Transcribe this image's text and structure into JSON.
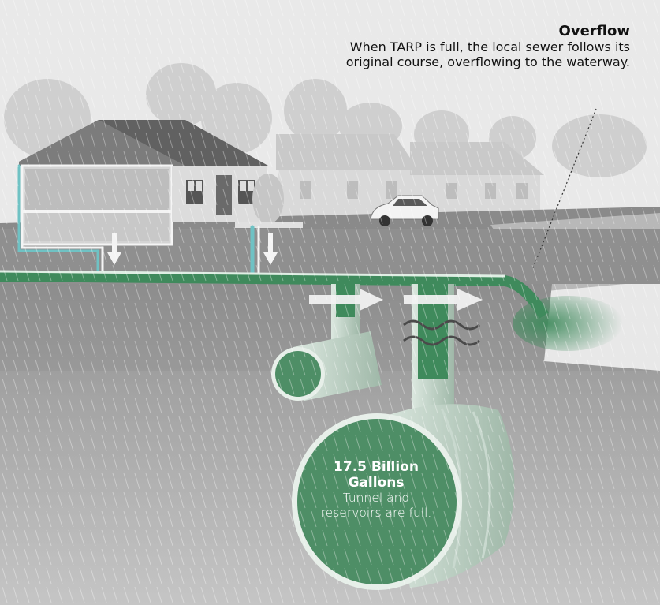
{
  "annotations": {
    "overflow_title": "Overflow",
    "overflow_body": "When TARP is full, the local sewer follows its original course, overflowing to the waterway.",
    "tunnel_title": "17.5 Billion Gallons",
    "tunnel_body": "Tunnel and reservoirs are full."
  },
  "colors": {
    "sewer_green": "#3f8a5c",
    "tunnel_green": "#4e8e66",
    "drain_pipe_blue": "#6fc2c4",
    "ground": "#9a9a9a",
    "sky": "#e9e9e9"
  }
}
